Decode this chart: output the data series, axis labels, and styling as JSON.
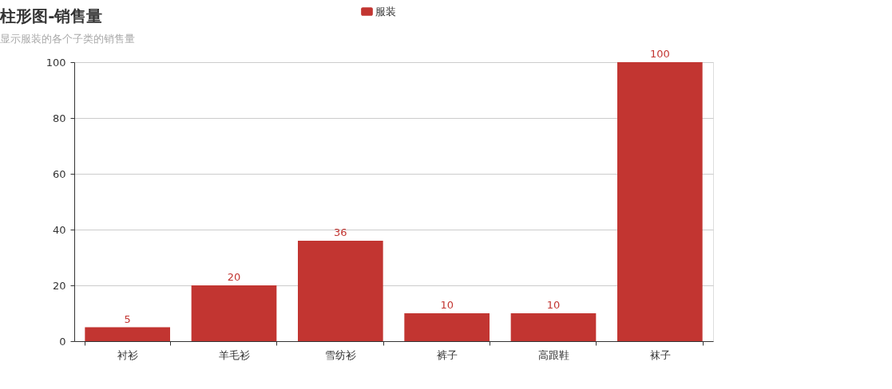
{
  "chart_data": {
    "type": "bar",
    "title": "柱形图-销售量",
    "subtitle": "显示服装的各个子类的销售量",
    "categories": [
      "衬衫",
      "羊毛衫",
      "雪纺衫",
      "裤子",
      "高跟鞋",
      "袜子"
    ],
    "series": [
      {
        "name": "服装",
        "color": "#c23531",
        "values": [
          5,
          20,
          36,
          10,
          10,
          100
        ]
      }
    ],
    "ylim": [
      0,
      100
    ],
    "yticks": [
      0,
      20,
      40,
      60,
      80,
      100
    ],
    "grid": "y",
    "legend": "top",
    "data_labels": true
  }
}
